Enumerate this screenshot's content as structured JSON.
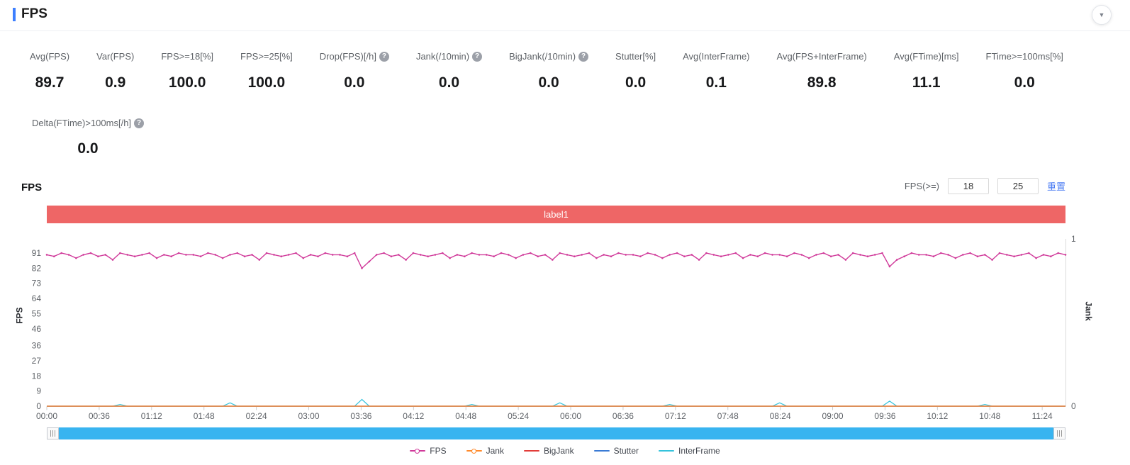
{
  "header": {
    "title": "FPS"
  },
  "icons": {
    "help": "?",
    "collapse": "▼"
  },
  "colors": {
    "accent": "#3d7fff",
    "banner": "#ee6666",
    "scrollbar": "#38b4f0",
    "link": "#4b7cf3"
  },
  "metrics": [
    {
      "label": "Avg(FPS)",
      "value": "89.7"
    },
    {
      "label": "Var(FPS)",
      "value": "0.9"
    },
    {
      "label": "FPS>=18[%]",
      "value": "100.0"
    },
    {
      "label": "FPS>=25[%]",
      "value": "100.0"
    },
    {
      "label": "Drop(FPS)[/h]",
      "value": "0.0",
      "help": true
    },
    {
      "label": "Jank(/10min)",
      "value": "0.0",
      "help": true
    },
    {
      "label": "BigJank(/10min)",
      "value": "0.0",
      "help": true
    },
    {
      "label": "Stutter[%]",
      "value": "0.0"
    },
    {
      "label": "Avg(InterFrame)",
      "value": "0.1"
    },
    {
      "label": "Avg(FPS+InterFrame)",
      "value": "89.8"
    },
    {
      "label": "Avg(FTime)[ms]",
      "value": "11.1"
    },
    {
      "label": "FTime>=100ms[%]",
      "value": "0.0"
    }
  ],
  "metric_extra": {
    "label": "Delta(FTime)>100ms[/h]",
    "value": "0.0",
    "help": true
  },
  "chart": {
    "heading": "FPS",
    "threshold_label": "FPS(>=)",
    "threshold_value_1": "18",
    "threshold_value_2": "25",
    "reset_label": "重置",
    "banner_label": "label1"
  },
  "chart_data": {
    "type": "line",
    "title": "FPS",
    "banner_label": "label1",
    "legend_position": "bottom",
    "grid": false,
    "x_tick_labels": [
      "00:00",
      "00:36",
      "01:12",
      "01:48",
      "02:24",
      "03:00",
      "03:36",
      "04:12",
      "04:48",
      "05:24",
      "06:00",
      "06:36",
      "07:12",
      "07:48",
      "08:24",
      "09:00",
      "09:36",
      "10:12",
      "10:48",
      "11:24"
    ],
    "x_tick_interval_seconds": 36,
    "x_total_seconds": 700,
    "sample_interval_seconds": 5,
    "left_axis": {
      "label": "FPS",
      "ticks": [
        0,
        9,
        18,
        27,
        36,
        46,
        55,
        64,
        73,
        82,
        91
      ],
      "max_label": 91
    },
    "right_axis": {
      "label": "Jank",
      "ticks": [
        0,
        1
      ],
      "max": 1
    },
    "series": [
      {
        "name": "FPS",
        "color": "#d03a9a",
        "axis": "left",
        "marker": true,
        "values": [
          90,
          89,
          91,
          90,
          88,
          90,
          91,
          89,
          90,
          87,
          91,
          90,
          89,
          90,
          91,
          88,
          90,
          89,
          91,
          90,
          90,
          89,
          91,
          90,
          88,
          90,
          91,
          89,
          90,
          87,
          91,
          90,
          89,
          90,
          91,
          88,
          90,
          89,
          91,
          90,
          90,
          89,
          91,
          82,
          86,
          90,
          91,
          89,
          90,
          87,
          91,
          90,
          89,
          90,
          91,
          88,
          90,
          89,
          91,
          90,
          90,
          89,
          91,
          90,
          88,
          90,
          91,
          89,
          90,
          87,
          91,
          90,
          89,
          90,
          91,
          88,
          90,
          89,
          91,
          90,
          90,
          89,
          91,
          90,
          88,
          90,
          91,
          89,
          90,
          87,
          91,
          90,
          89,
          90,
          91,
          88,
          90,
          89,
          91,
          90,
          90,
          89,
          91,
          90,
          88,
          90,
          91,
          89,
          90,
          87,
          91,
          90,
          89,
          90,
          91,
          83,
          87,
          89,
          91,
          90,
          90,
          89,
          91,
          90,
          88,
          90,
          91,
          89,
          90,
          87,
          91,
          90,
          89,
          90,
          91,
          88,
          90,
          89,
          91,
          90
        ]
      },
      {
        "name": "Jank",
        "color": "#ff8a2b",
        "axis": "right",
        "marker": false,
        "values": [
          0,
          0
        ]
      },
      {
        "name": "BigJank",
        "color": "#e23c39",
        "axis": "right",
        "marker": false,
        "values": [
          0,
          0
        ]
      },
      {
        "name": "Stutter",
        "color": "#3a7bd5",
        "axis": "right",
        "marker": false,
        "values": [
          0,
          0
        ]
      },
      {
        "name": "InterFrame",
        "color": "#35c3dc",
        "axis": "left",
        "marker": false,
        "values": [
          0,
          0,
          0,
          0,
          0,
          0,
          0,
          0,
          0,
          0,
          1,
          0,
          0,
          0,
          0,
          0,
          0,
          0,
          0,
          0,
          0,
          0,
          0,
          0,
          0,
          2,
          0,
          0,
          0,
          0,
          0,
          0,
          0,
          0,
          0,
          0,
          0,
          0,
          0,
          0,
          0,
          0,
          0,
          4,
          0,
          0,
          0,
          0,
          0,
          0,
          0,
          0,
          0,
          0,
          0,
          0,
          0,
          0,
          1,
          0,
          0,
          0,
          0,
          0,
          0,
          0,
          0,
          0,
          0,
          0,
          2,
          0,
          0,
          0,
          0,
          0,
          0,
          0,
          0,
          0,
          0,
          0,
          0,
          0,
          0,
          1,
          0,
          0,
          0,
          0,
          0,
          0,
          0,
          0,
          0,
          0,
          0,
          0,
          0,
          0,
          2,
          0,
          0,
          0,
          0,
          0,
          0,
          0,
          0,
          0,
          0,
          0,
          0,
          0,
          0,
          3,
          0,
          0,
          0,
          0,
          0,
          0,
          0,
          0,
          0,
          0,
          0,
          0,
          1,
          0,
          0,
          0,
          0,
          0,
          0,
          0,
          0,
          0,
          0,
          0
        ]
      }
    ]
  }
}
